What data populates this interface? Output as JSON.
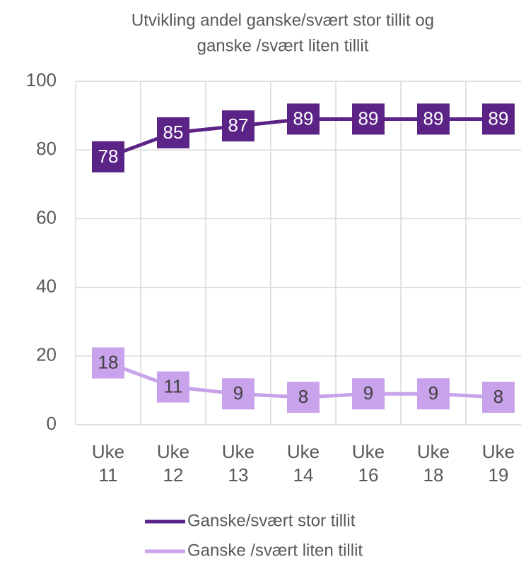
{
  "chart_data": {
    "type": "line",
    "title": [
      "Utvikling andel ganske/svært stor tillit og",
      "ganske /svært liten tillit"
    ],
    "categories": [
      "Uke 11",
      "Uke 12",
      "Uke 13",
      "Uke 14",
      "Uke 16",
      "Uke 18",
      "Uke 19"
    ],
    "series": [
      {
        "name": "Ganske/svært stor tillit",
        "color": "#5c2387",
        "label_text_color": "#ffffff",
        "values": [
          78,
          85,
          87,
          89,
          89,
          89,
          89
        ]
      },
      {
        "name": "Ganske /svært liten tillit",
        "color": "#c8a2ea",
        "label_text_color": "#404040",
        "values": [
          18,
          11,
          9,
          8,
          9,
          9,
          8
        ]
      }
    ],
    "ylim": [
      0,
      100
    ],
    "yticks": [
      0,
      20,
      40,
      60,
      80,
      100
    ],
    "grid": true,
    "legend": "bottom"
  }
}
